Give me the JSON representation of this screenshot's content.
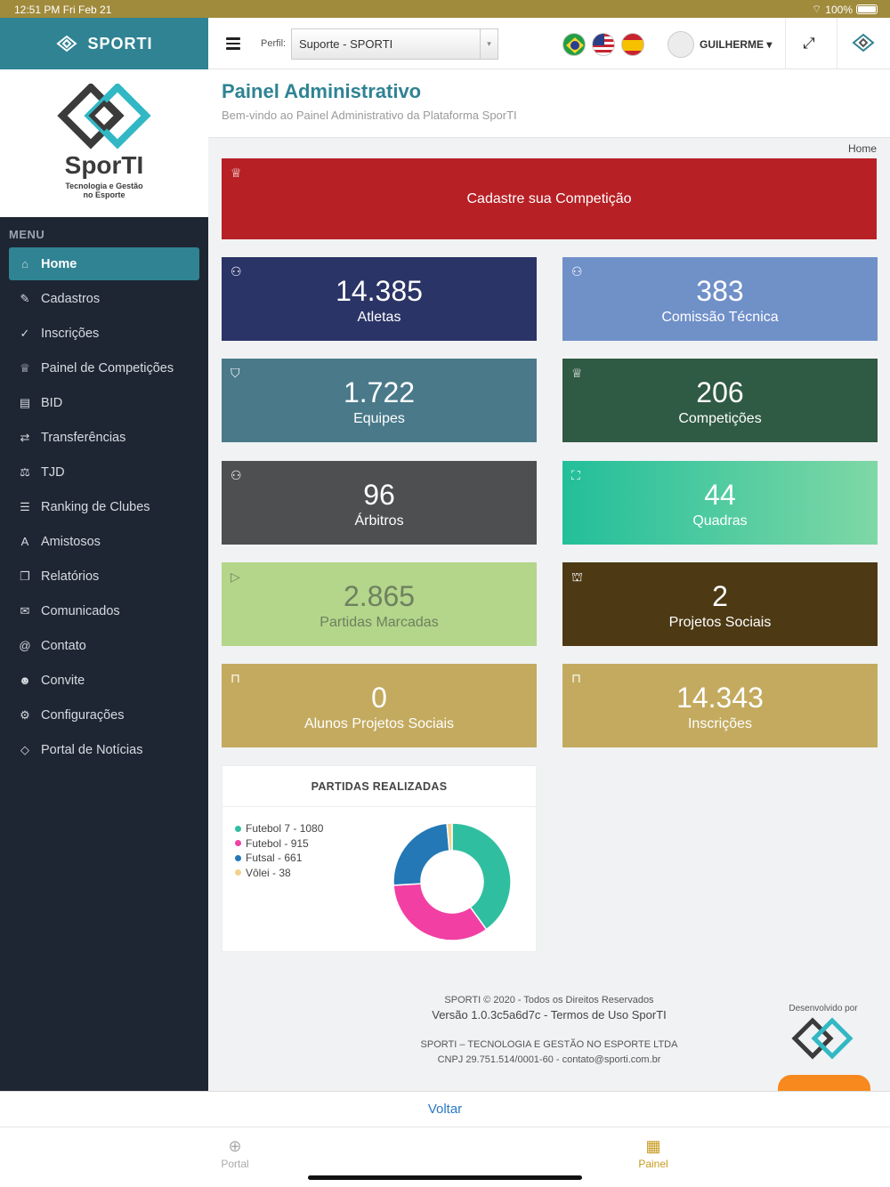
{
  "status": {
    "time": "12:51 PM   Fri Feb 21",
    "battery": "100%"
  },
  "brand": {
    "name": "SPORTI"
  },
  "logo": {
    "text": "SporTI",
    "tagline_1": "Tecnologia e Gestão",
    "tagline_2": "no Esporte"
  },
  "topbar": {
    "perfil_label": "Perfil:",
    "perfil_value": "Suporte - SPORTI",
    "user_name": "GUILHERME"
  },
  "sidebar": {
    "menu_title": "MENU",
    "items": [
      {
        "label": "Home",
        "icon": "home-icon",
        "glyph": "⌂"
      },
      {
        "label": "Cadastros",
        "icon": "edit-icon",
        "glyph": "✎"
      },
      {
        "label": "Inscrições",
        "icon": "check-circle-icon",
        "glyph": "✓"
      },
      {
        "label": "Painel de Competições",
        "icon": "trophy-icon",
        "glyph": "♕"
      },
      {
        "label": "BID",
        "icon": "id-card-icon",
        "glyph": "▤"
      },
      {
        "label": "Transferências",
        "icon": "exchange-icon",
        "glyph": "⇄"
      },
      {
        "label": "TJD",
        "icon": "balance-scale-icon",
        "glyph": "⚖"
      },
      {
        "label": "Ranking de Clubes",
        "icon": "list-ordered-icon",
        "glyph": "☰"
      },
      {
        "label": "Amistosos",
        "icon": "font-icon",
        "glyph": "A"
      },
      {
        "label": "Relatórios",
        "icon": "copy-icon",
        "glyph": "❐"
      },
      {
        "label": "Comunicados",
        "icon": "envelope-icon",
        "glyph": "✉"
      },
      {
        "label": "Contato",
        "icon": "at-icon",
        "glyph": "@"
      },
      {
        "label": "Convite",
        "icon": "users-icon",
        "glyph": "☻"
      },
      {
        "label": "Configurações",
        "icon": "gear-icon",
        "glyph": "⚙"
      },
      {
        "label": "Portal de Notícias",
        "icon": "sporti-logo-icon",
        "glyph": "◇"
      }
    ]
  },
  "page": {
    "title": "Painel Administrativo",
    "subtitle": "Bem-vindo ao Painel Administrativo da Plataforma SporTI",
    "breadcrumb": "Home"
  },
  "banner": {
    "label": "Cadastre sua Competição"
  },
  "tiles": [
    {
      "num": "14.385",
      "label": "Atletas",
      "icon": "user-icon",
      "color": "#2b3466"
    },
    {
      "num": "383",
      "label": "Comissão Técnica",
      "icon": "user-icon",
      "color": "#7090c8"
    },
    {
      "num": "1.722",
      "label": "Equipes",
      "icon": "shield-icon",
      "color": "#4a7a8a"
    },
    {
      "num": "206",
      "label": "Competições",
      "icon": "trophy-icon",
      "color": "#2f5a43"
    },
    {
      "num": "96",
      "label": "Árbitros",
      "icon": "user-icon",
      "color": "#4e4f51"
    },
    {
      "num": "44",
      "label": "Quadras",
      "icon": "expand-icon",
      "color": "#2ec49b"
    },
    {
      "num": "2.865",
      "label": "Partidas Marcadas",
      "icon": "play-icon",
      "color": "#b3d68a"
    },
    {
      "num": "2",
      "label": "Projetos Sociais",
      "icon": "stadium-icon",
      "color": "#4d3a14"
    },
    {
      "num": "0",
      "label": "Alunos Projetos Sociais",
      "icon": "shirt-icon",
      "color": "#c3aa5f"
    },
    {
      "num": "14.343",
      "label": "Inscrições",
      "icon": "shirt-icon",
      "color": "#c3aa5f"
    }
  ],
  "chart_data": {
    "type": "pie",
    "title": "PARTIDAS REALIZADAS",
    "categories": [
      "Futebol 7",
      "Futebol",
      "Futsal",
      "Vôlei"
    ],
    "values": [
      1080,
      915,
      661,
      38
    ],
    "legend_labels": [
      "Futebol 7 - 1080",
      "Futebol - 915",
      "Futsal - 661",
      "Vôlei - 38"
    ],
    "colors": [
      "#2fbfa0",
      "#f23fa4",
      "#2378b5",
      "#f3d18f"
    ],
    "legend_position": "left"
  },
  "footer": {
    "line1": "SPORTI © 2020 - Todos os Direitos Reservados",
    "line2": "Versão 1.0.3c5a6d7c - Termos de Uso SporTI",
    "line3": "SPORTI – TECNOLOGIA E GESTÃO NO ESPORTE LTDA",
    "line4": "CNPJ 29.751.514/0001-60 - contato@sporti.com.br",
    "developed_by": "Desenvolvido por"
  },
  "bottom": {
    "back": "Voltar",
    "tabs": [
      {
        "label": "Portal",
        "icon": "globe-icon"
      },
      {
        "label": "Painel",
        "icon": "dashboard-icon"
      }
    ]
  }
}
